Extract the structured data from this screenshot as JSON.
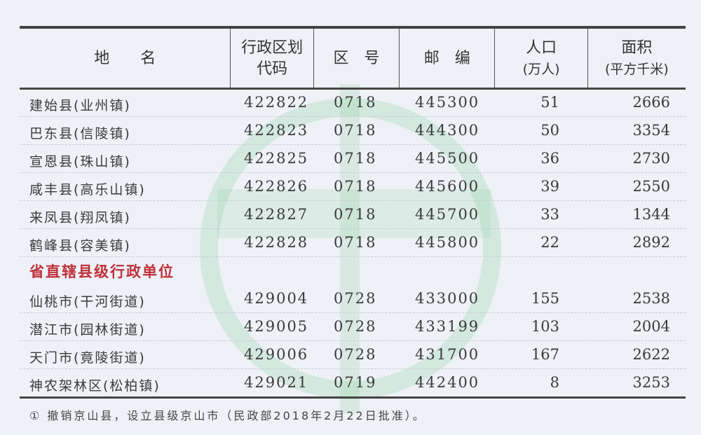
{
  "header": {
    "name": "地　　名",
    "code": "行政区划代码",
    "code_l1": "行政区划",
    "code_l2": "代码",
    "area_code": "区　号",
    "postcode": "邮　编",
    "population": "人口",
    "population_unit": "(万人)",
    "area": "面积",
    "area_unit": "(平方千米)"
  },
  "rows": [
    {
      "name": "建始县(业州镇)",
      "code": "422822",
      "area_code": "0718",
      "postcode": "445300",
      "population": "51",
      "area": "2666"
    },
    {
      "name": "巴东县(信陵镇)",
      "code": "422823",
      "area_code": "0718",
      "postcode": "444300",
      "population": "50",
      "area": "3354"
    },
    {
      "name": "宣恩县(珠山镇)",
      "code": "422825",
      "area_code": "0718",
      "postcode": "445500",
      "population": "36",
      "area": "2730"
    },
    {
      "name": "咸丰县(高乐山镇)",
      "code": "422826",
      "area_code": "0718",
      "postcode": "445600",
      "population": "39",
      "area": "2550"
    },
    {
      "name": "来凤县(翔凤镇)",
      "code": "422827",
      "area_code": "0718",
      "postcode": "445700",
      "population": "33",
      "area": "1344"
    },
    {
      "name": "鹤峰县(容美镇)",
      "code": "422828",
      "area_code": "0718",
      "postcode": "445800",
      "population": "22",
      "area": "2892"
    }
  ],
  "section": "省直辖县级行政单位",
  "rows2": [
    {
      "name": "仙桃市(干河街道)",
      "code": "429004",
      "area_code": "0728",
      "postcode": "433000",
      "population": "155",
      "area": "2538"
    },
    {
      "name": "潜江市(园林街道)",
      "code": "429005",
      "area_code": "0728",
      "postcode": "433199",
      "population": "103",
      "area": "2004"
    },
    {
      "name": "天门市(竟陵街道)",
      "code": "429006",
      "area_code": "0728",
      "postcode": "431700",
      "population": "167",
      "area": "2622"
    },
    {
      "name": "神农架林区(松柏镇)",
      "code": "429021",
      "area_code": "0719",
      "postcode": "442400",
      "population": "8",
      "area": "3253"
    }
  ],
  "footnote": "① 撤销京山县，设立县级京山市（民政部2018年2月22日批准）。",
  "colors": {
    "section": "#c0303a",
    "watermark": "#78c88c"
  }
}
